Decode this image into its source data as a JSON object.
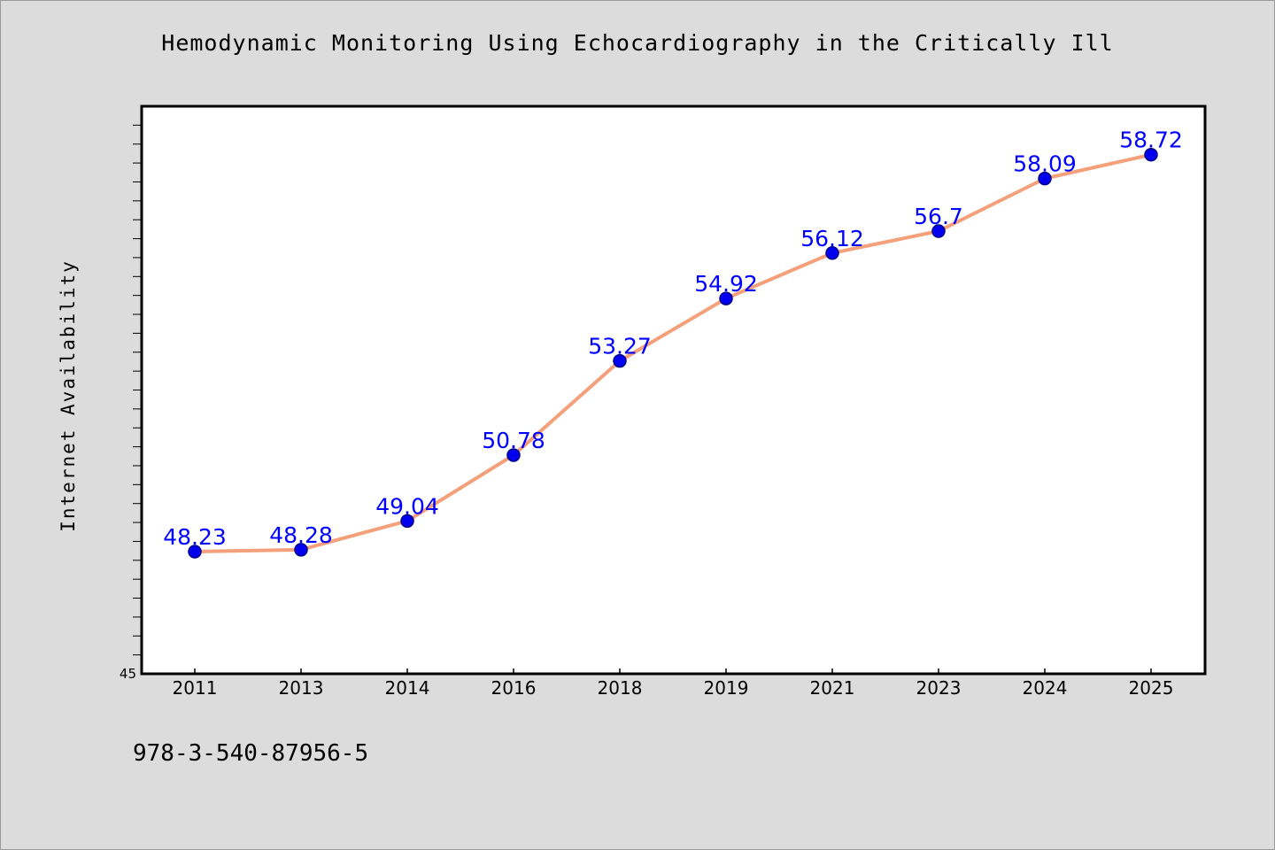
{
  "chart_data": {
    "type": "line",
    "title": "Hemodynamic Monitoring Using Echocardiography in the Critically Ill",
    "xlabel": "",
    "ylabel": "Internet Availability",
    "categories": [
      "2011",
      "2013",
      "2014",
      "2016",
      "2018",
      "2019",
      "2021",
      "2023",
      "2024",
      "2025"
    ],
    "series": [
      {
        "values": [
          48.23,
          48.28,
          49.04,
          50.78,
          53.27,
          54.92,
          56.12,
          56.7,
          58.09,
          58.72
        ],
        "data_labels": [
          "48.23",
          "48.28",
          "49.04",
          "50.78",
          "53.27",
          "54.92",
          "56.12",
          "56.7",
          "58.09",
          "58.72"
        ]
      }
    ],
    "ylim": [
      45,
      60
    ],
    "y_tick_labels": [
      "45"
    ],
    "grid": false,
    "line_color": "#f4a07a",
    "marker_color": "#0000ee",
    "label_color": "#0000ff"
  },
  "footer": {
    "isbn": "978-3-540-87956-5"
  }
}
